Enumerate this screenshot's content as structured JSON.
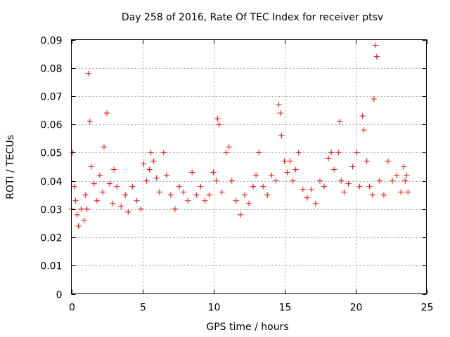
{
  "chart_data": {
    "type": "scatter",
    "title": "Day 258 of 2016, Rate Of TEC Index for receiver ptsv",
    "xlabel": "GPS time / hours",
    "ylabel": "ROTI / TECUs",
    "xlim": [
      0,
      25
    ],
    "ylim": [
      0,
      0.09
    ],
    "xticks": [
      0,
      5,
      10,
      15,
      20,
      25
    ],
    "xtick_labels": [
      "0",
      "5",
      "10",
      "15",
      "20",
      "25"
    ],
    "yticks": [
      0,
      0.01,
      0.02,
      0.03,
      0.04,
      0.05,
      0.06,
      0.07,
      0.08,
      0.09
    ],
    "ytick_labels": [
      "0",
      "0.01",
      "0.02",
      "0.03",
      "0.04",
      "0.05",
      "0.06",
      "0.07",
      "0.08",
      "0.09"
    ],
    "grid": true,
    "marker": "+",
    "color": "#ff0000",
    "series": [
      {
        "name": "ROTI",
        "x": [
          0.0,
          0.1,
          0.2,
          0.3,
          0.4,
          0.5,
          0.7,
          0.9,
          1.0,
          1.1,
          1.2,
          1.3,
          1.4,
          1.6,
          1.8,
          2.0,
          2.2,
          2.3,
          2.5,
          2.7,
          2.9,
          3.0,
          3.2,
          3.5,
          3.8,
          4.0,
          4.3,
          4.6,
          4.9,
          5.1,
          5.3,
          5.5,
          5.6,
          5.8,
          6.0,
          6.2,
          6.5,
          6.7,
          7.0,
          7.3,
          7.6,
          7.9,
          8.2,
          8.5,
          8.8,
          9.1,
          9.4,
          9.7,
          10.0,
          10.2,
          10.3,
          10.4,
          10.6,
          10.9,
          11.1,
          11.3,
          11.6,
          11.9,
          12.2,
          12.5,
          12.8,
          13.0,
          13.2,
          13.5,
          13.8,
          14.1,
          14.4,
          14.6,
          14.7,
          14.8,
          15.0,
          15.2,
          15.4,
          15.6,
          15.8,
          16.0,
          16.3,
          16.6,
          16.9,
          17.2,
          17.5,
          17.8,
          18.1,
          18.3,
          18.5,
          18.8,
          18.9,
          19.0,
          19.2,
          19.5,
          19.8,
          20.1,
          20.3,
          20.5,
          20.6,
          20.8,
          21.0,
          21.2,
          21.3,
          21.4,
          21.5,
          21.7,
          22.0,
          22.3,
          22.6,
          22.9,
          23.2,
          23.4,
          23.5,
          23.6,
          23.7
        ],
        "y": [
          0.03,
          0.05,
          0.038,
          0.033,
          0.028,
          0.024,
          0.03,
          0.026,
          0.035,
          0.03,
          0.078,
          0.061,
          0.045,
          0.039,
          0.033,
          0.042,
          0.036,
          0.052,
          0.064,
          0.039,
          0.032,
          0.044,
          0.038,
          0.031,
          0.035,
          0.029,
          0.038,
          0.033,
          0.03,
          0.046,
          0.04,
          0.044,
          0.05,
          0.047,
          0.041,
          0.036,
          0.05,
          0.042,
          0.035,
          0.03,
          0.038,
          0.036,
          0.033,
          0.043,
          0.035,
          0.038,
          0.033,
          0.035,
          0.043,
          0.04,
          0.062,
          0.06,
          0.036,
          0.05,
          0.052,
          0.04,
          0.033,
          0.028,
          0.035,
          0.032,
          0.038,
          0.042,
          0.05,
          0.038,
          0.035,
          0.042,
          0.04,
          0.067,
          0.064,
          0.056,
          0.047,
          0.043,
          0.047,
          0.04,
          0.044,
          0.05,
          0.037,
          0.034,
          0.037,
          0.032,
          0.04,
          0.038,
          0.048,
          0.05,
          0.044,
          0.05,
          0.061,
          0.04,
          0.036,
          0.039,
          0.045,
          0.05,
          0.038,
          0.063,
          0.058,
          0.047,
          0.038,
          0.035,
          0.069,
          0.088,
          0.084,
          0.04,
          0.035,
          0.047,
          0.04,
          0.042,
          0.036,
          0.045,
          0.04,
          0.042,
          0.036
        ]
      }
    ]
  }
}
